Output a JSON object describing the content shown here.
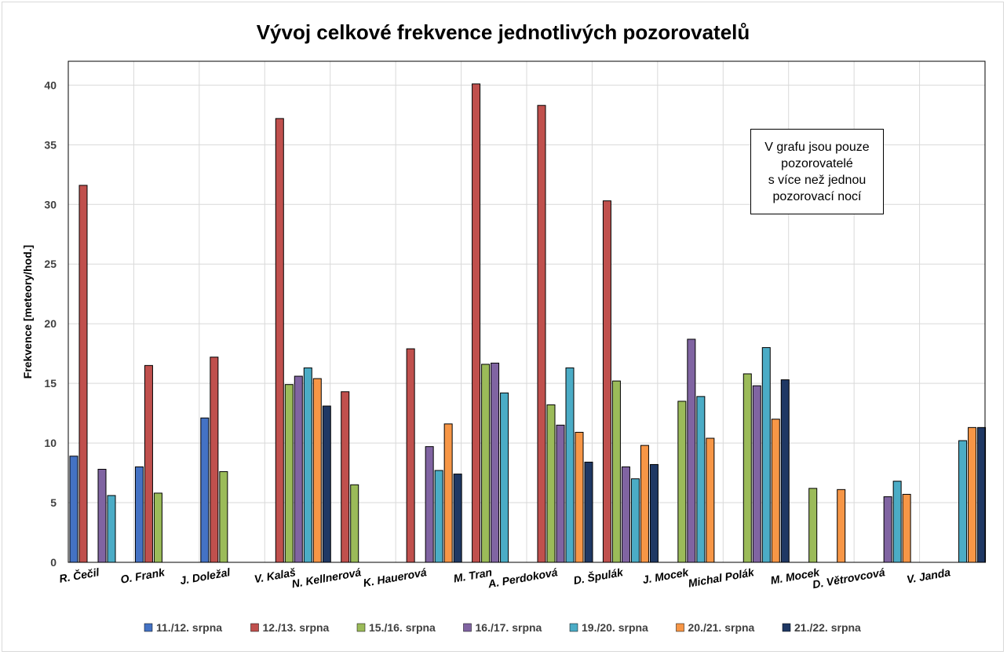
{
  "chart_data": {
    "type": "bar",
    "title": "Vývoj celkové frekvence jednotlivých pozorovatelů",
    "xlabel": "",
    "ylabel": "Frekvence [meteory/hod.]",
    "ylim": [
      0,
      42
    ],
    "yticks": [
      0,
      5,
      10,
      15,
      20,
      25,
      30,
      35,
      40
    ],
    "grid": true,
    "legend_position": "bottom",
    "note": "V grafu jsou pouze\npozorovatelé\ns více než jednou\npozorovací nocí",
    "categories": [
      "R. Čečil",
      "O. Frank",
      "J. Doležal",
      "V. Kalaš",
      "N. Kellnerová",
      "K. Hauerová",
      "M. Tran",
      "A. Perdoková",
      "D. Špulák",
      "J. Mocek",
      "Michal Polák",
      "M. Mocek",
      "D. Větrovcová",
      "V. Janda"
    ],
    "series": [
      {
        "name": "11./12. srpna",
        "color": "#4472c4",
        "values": [
          8.9,
          8.0,
          12.1,
          null,
          null,
          null,
          null,
          null,
          null,
          null,
          null,
          null,
          null,
          null
        ]
      },
      {
        "name": "12./13. srpna",
        "color": "#c0504d",
        "values": [
          31.6,
          16.5,
          17.2,
          37.2,
          14.3,
          17.9,
          40.1,
          38.3,
          30.3,
          null,
          null,
          null,
          null,
          null
        ]
      },
      {
        "name": "15./16. srpna",
        "color": "#9bbb59",
        "values": [
          null,
          5.8,
          7.6,
          14.9,
          6.5,
          null,
          16.6,
          13.2,
          15.2,
          13.5,
          15.8,
          6.2,
          null,
          null
        ]
      },
      {
        "name": "16./17. srpna",
        "color": "#8064a2",
        "values": [
          7.8,
          null,
          null,
          15.6,
          null,
          9.7,
          16.7,
          11.5,
          8.0,
          18.7,
          14.8,
          null,
          5.5,
          null
        ]
      },
      {
        "name": "19./20. srpna",
        "color": "#4bacc6",
        "values": [
          5.6,
          null,
          null,
          16.3,
          null,
          7.7,
          14.2,
          16.3,
          7.0,
          13.9,
          18.0,
          null,
          6.8,
          10.2
        ]
      },
      {
        "name": "20./21. srpna",
        "color": "#f79646",
        "values": [
          null,
          null,
          null,
          15.4,
          null,
          11.6,
          null,
          10.9,
          9.8,
          10.4,
          12.0,
          6.1,
          5.7,
          11.3
        ]
      },
      {
        "name": "21./22. srpna",
        "color": "#1f3864",
        "values": [
          null,
          null,
          null,
          13.1,
          null,
          7.4,
          null,
          8.4,
          8.2,
          null,
          15.3,
          null,
          null,
          11.3
        ]
      }
    ]
  }
}
